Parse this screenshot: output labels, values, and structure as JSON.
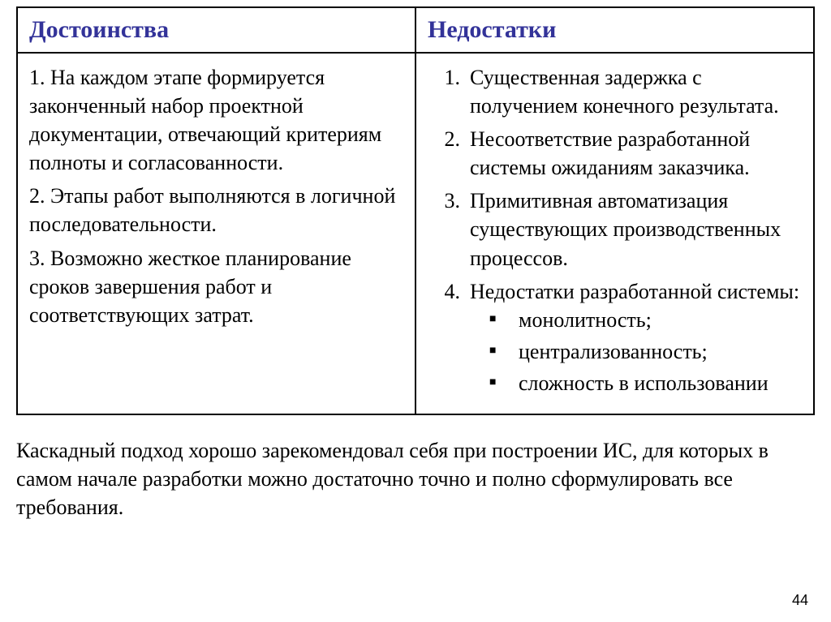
{
  "table": {
    "header_left": "Достоинства",
    "header_right": "Недостатки",
    "header_color": "#333399",
    "header_fontsize": 30,
    "border_color": "#000000",
    "cell_fontsize": 26,
    "advantages": {
      "item1": "1. На каждом этапе формируется законченный набор проектной документации, отвечающий критериям полноты и согласованности.",
      "item2": "2. Этапы работ выполняются в логичной последовательности.",
      "item3": "3. Возможно жесткое планирование сроков завершения работ и соответствующих затрат."
    },
    "disadvantages": {
      "item1": "Существенная задержка с получением конечного результата.",
      "item2": "Несоответствие разработанной системы ожиданиям заказчика.",
      "item3": "Примитивная автоматизация существующих производственных процессов.",
      "item4": "Недостатки разработанной системы:",
      "sub1": "монолитность;",
      "sub2": "централизованность;",
      "sub3": "сложность в использовании"
    }
  },
  "footer_text": "Каскадный подход хорошо зарекомендовал себя при построении ИС, для которых в самом начале разработки можно достаточно точно и полно сформулировать все требования.",
  "page_number": "44",
  "colors": {
    "background": "#ffffff",
    "text": "#000000",
    "header_text": "#333399",
    "border": "#000000"
  },
  "typography": {
    "font_family": "Times New Roman",
    "body_fontsize": 26,
    "header_fontsize": 30,
    "page_number_fontsize": 18
  }
}
